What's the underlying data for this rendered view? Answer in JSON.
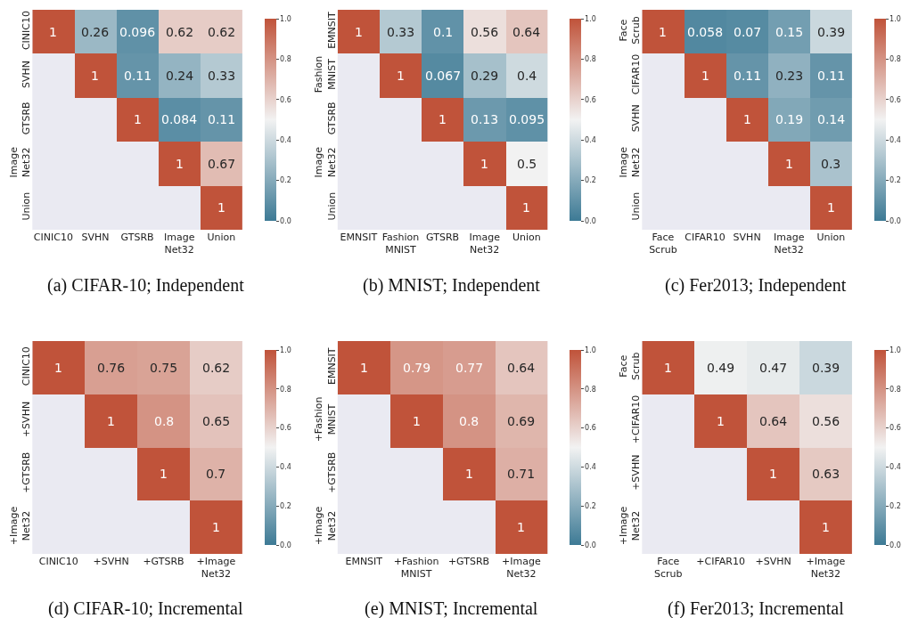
{
  "chart_data": [
    {
      "type": "heatmap",
      "title": "(a) CIFAR-10; Independent",
      "categories": [
        "CINIC10",
        "SVHN",
        "GTSRB",
        "Image\nNet32",
        "Union"
      ],
      "y_categories": [
        "CINIC10",
        "SVHN",
        "GTSRB",
        "Image\nNet32",
        "Union"
      ],
      "cells": [
        [
          1,
          0.26,
          0.096,
          0.62,
          0.62
        ],
        [
          null,
          1,
          0.11,
          0.24,
          0.33
        ],
        [
          null,
          null,
          1,
          0.084,
          0.11
        ],
        [
          null,
          null,
          null,
          1,
          0.67
        ],
        [
          null,
          null,
          null,
          null,
          1
        ]
      ],
      "data_labels": true,
      "clim": [
        0.0,
        1.0
      ],
      "cticks": [
        {
          "value": 0.0,
          "label": "0.0"
        },
        {
          "value": 0.2,
          "label": "0.2"
        },
        {
          "value": 0.4,
          "label": "0.4"
        },
        {
          "value": 0.6,
          "label": "0.6"
        },
        {
          "value": 0.8,
          "label": "0.8"
        },
        {
          "value": 1.0,
          "label": "1.0"
        }
      ]
    },
    {
      "type": "heatmap",
      "title": "(b) MNIST; Independent",
      "categories": [
        "EMNSIT",
        "Fashion\nMNIST",
        "GTSRB",
        "Image\nNet32",
        "Union"
      ],
      "y_categories": [
        "EMNSIT",
        "Fashion\nMNIST",
        "GTSRB",
        "Image\nNet32",
        "Union"
      ],
      "cells": [
        [
          1,
          0.33,
          0.1,
          0.56,
          0.64
        ],
        [
          null,
          1,
          0.067,
          0.29,
          0.4
        ],
        [
          null,
          null,
          1,
          0.13,
          0.095
        ],
        [
          null,
          null,
          null,
          1,
          0.5
        ],
        [
          null,
          null,
          null,
          null,
          1
        ]
      ],
      "data_labels": true,
      "clim": [
        0.0,
        1.0
      ],
      "cticks": [
        {
          "value": 0.0,
          "label": "0.0"
        },
        {
          "value": 0.2,
          "label": "0.2"
        },
        {
          "value": 0.4,
          "label": "0.4"
        },
        {
          "value": 0.6,
          "label": "0.6"
        },
        {
          "value": 0.8,
          "label": "0.8"
        },
        {
          "value": 1.0,
          "label": "1.0"
        }
      ]
    },
    {
      "type": "heatmap",
      "title": "(c) Fer2013; Independent",
      "categories": [
        "Face\nScrub",
        "CIFAR10",
        "SVHN",
        "Image\nNet32",
        "Union"
      ],
      "y_categories": [
        "Face\nScrub",
        "CIFAR10",
        "SVHN",
        "Image\nNet32",
        "Union"
      ],
      "cells": [
        [
          1,
          0.058,
          0.07,
          0.15,
          0.39
        ],
        [
          null,
          1,
          0.11,
          0.23,
          0.11
        ],
        [
          null,
          null,
          1,
          0.19,
          0.14
        ],
        [
          null,
          null,
          null,
          1,
          0.3
        ],
        [
          null,
          null,
          null,
          null,
          1
        ]
      ],
      "data_labels": true,
      "clim": [
        0.0,
        1.0
      ],
      "cticks": [
        {
          "value": 0.0,
          "label": "0.0"
        },
        {
          "value": 0.2,
          "label": "0.2"
        },
        {
          "value": 0.4,
          "label": "0.4"
        },
        {
          "value": 0.6,
          "label": "0.6"
        },
        {
          "value": 0.8,
          "label": "0.8"
        },
        {
          "value": 1.0,
          "label": "1.0"
        }
      ]
    },
    {
      "type": "heatmap",
      "title": "(d) CIFAR-10; Incremental",
      "categories": [
        "CINIC10",
        "+SVHN",
        "+GTSRB",
        "+Image\nNet32"
      ],
      "y_categories": [
        "CINIC10",
        "+SVHN",
        "+GTSRB",
        "+Image\nNet32"
      ],
      "cells": [
        [
          1,
          0.76,
          0.75,
          0.62
        ],
        [
          null,
          1,
          0.8,
          0.65
        ],
        [
          null,
          null,
          1,
          0.7
        ],
        [
          null,
          null,
          null,
          1
        ]
      ],
      "data_labels": true,
      "clim": [
        0.0,
        1.0
      ],
      "cticks": [
        {
          "value": 0.0,
          "label": "0.0"
        },
        {
          "value": 0.2,
          "label": "0.2"
        },
        {
          "value": 0.4,
          "label": "0.4"
        },
        {
          "value": 0.6,
          "label": "0.6"
        },
        {
          "value": 0.8,
          "label": "0.8"
        },
        {
          "value": 1.0,
          "label": "1.0"
        }
      ]
    },
    {
      "type": "heatmap",
      "title": "(e) MNIST; Incremental",
      "categories": [
        "EMNSIT",
        "+Fashion\nMNIST",
        "+GTSRB",
        "+Image\nNet32"
      ],
      "y_categories": [
        "EMNSIT",
        "+Fashion\nMNIST",
        "+GTSRB",
        "+Image\nNet32"
      ],
      "cells": [
        [
          1,
          0.79,
          0.77,
          0.64
        ],
        [
          null,
          1,
          0.8,
          0.69
        ],
        [
          null,
          null,
          1,
          0.71
        ],
        [
          null,
          null,
          null,
          1
        ]
      ],
      "data_labels": true,
      "clim": [
        0.0,
        1.0
      ],
      "cticks": [
        {
          "value": 0.0,
          "label": "0.0"
        },
        {
          "value": 0.2,
          "label": "0.2"
        },
        {
          "value": 0.4,
          "label": "0.4"
        },
        {
          "value": 0.6,
          "label": "0.6"
        },
        {
          "value": 0.8,
          "label": "0.8"
        },
        {
          "value": 1.0,
          "label": "1.0"
        }
      ]
    },
    {
      "type": "heatmap",
      "title": "(f) Fer2013; Incremental",
      "categories": [
        "Face\nScrub",
        "+CIFAR10",
        "+SVHN",
        "+Image\nNet32"
      ],
      "y_categories": [
        "Face\nScrub",
        "+CIFAR10",
        "+SVHN",
        "+Image\nNet32"
      ],
      "cells": [
        [
          1,
          0.49,
          0.47,
          0.39
        ],
        [
          null,
          1,
          0.64,
          0.56
        ],
        [
          null,
          null,
          1,
          0.63
        ],
        [
          null,
          null,
          null,
          1
        ]
      ],
      "data_labels": true,
      "clim": [
        0.0,
        1.0
      ],
      "cticks": [
        {
          "value": 0.0,
          "label": "0.0"
        },
        {
          "value": 0.2,
          "label": "0.2"
        },
        {
          "value": 0.4,
          "label": "0.4"
        },
        {
          "value": 0.6,
          "label": "0.6"
        },
        {
          "value": 0.8,
          "label": "0.8"
        },
        {
          "value": 1.0,
          "label": "1.0"
        }
      ]
    }
  ]
}
